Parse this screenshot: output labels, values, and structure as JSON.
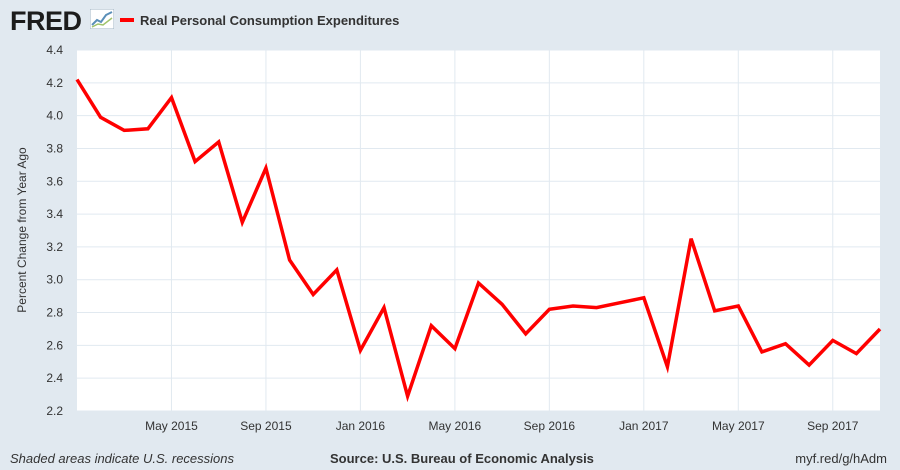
{
  "header": {
    "logo_text": "FRED",
    "logo_icon": "line-chart-icon"
  },
  "colors": {
    "series": "#ff0000",
    "background": "#e1e9f0",
    "plot_background": "#ffffff",
    "grid": "#e1e9f0"
  },
  "chart_data": {
    "type": "line",
    "title": "",
    "ylabel": "Percent Change from Year Ago",
    "xlabel": "",
    "ylim": [
      2.2,
      4.4
    ],
    "yticks": [
      "2.2",
      "2.4",
      "2.6",
      "2.8",
      "3.0",
      "3.2",
      "3.4",
      "3.6",
      "3.8",
      "4.0",
      "4.2",
      "4.4"
    ],
    "xticks": [
      "May 2015",
      "Sep 2015",
      "Jan 2016",
      "May 2016",
      "Sep 2016",
      "Jan 2017",
      "May 2017",
      "Sep 2017"
    ],
    "grid": true,
    "legend_position": "top-left",
    "series": [
      {
        "name": "Real Personal Consumption Expenditures",
        "x": [
          "2015-01",
          "2015-02",
          "2015-03",
          "2015-04",
          "2015-05",
          "2015-06",
          "2015-07",
          "2015-08",
          "2015-09",
          "2015-10",
          "2015-11",
          "2015-12",
          "2016-01",
          "2016-02",
          "2016-03",
          "2016-04",
          "2016-05",
          "2016-06",
          "2016-07",
          "2016-08",
          "2016-09",
          "2016-10",
          "2016-11",
          "2016-12",
          "2017-01",
          "2017-02",
          "2017-03",
          "2017-04",
          "2017-05",
          "2017-06",
          "2017-07",
          "2017-08",
          "2017-09",
          "2017-10",
          "2017-11"
        ],
        "values": [
          4.22,
          3.99,
          3.91,
          3.92,
          4.11,
          3.72,
          3.84,
          3.35,
          3.68,
          3.12,
          2.91,
          3.06,
          2.57,
          2.83,
          2.29,
          2.72,
          2.58,
          2.98,
          2.85,
          2.67,
          2.82,
          2.84,
          2.83,
          2.86,
          2.89,
          2.47,
          3.25,
          2.81,
          2.84,
          2.56,
          2.61,
          2.48,
          2.63,
          2.55,
          2.7
        ]
      }
    ]
  },
  "footer": {
    "note": "Shaded areas indicate U.S. recessions",
    "source": "Source: U.S. Bureau of Economic Analysis",
    "url": "myf.red/g/hAdm"
  }
}
